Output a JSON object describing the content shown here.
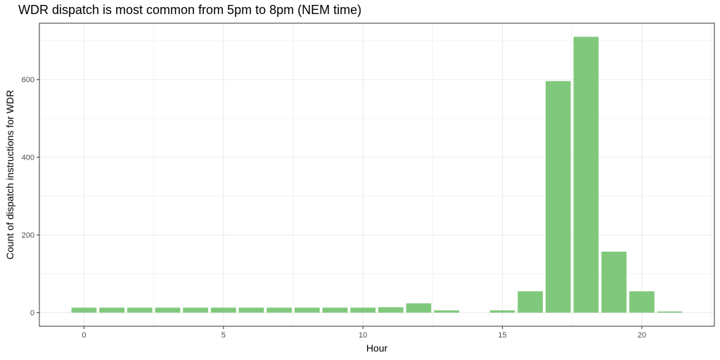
{
  "chart_data": {
    "type": "bar",
    "title": "WDR dispatch is most common from 5pm to 8pm (NEM time)",
    "xlabel": "Hour",
    "ylabel": "Count of dispatch instructions for WDR",
    "x": [
      0,
      1,
      2,
      3,
      4,
      5,
      6,
      7,
      8,
      9,
      10,
      11,
      12,
      13,
      14,
      15,
      16,
      17,
      18,
      19,
      20,
      21
    ],
    "values": [
      13,
      13,
      13,
      13,
      13,
      13,
      13,
      13,
      13,
      13,
      13,
      14,
      24,
      6,
      0,
      6,
      55,
      596,
      710,
      157,
      55,
      3
    ],
    "xlim": [
      -1.6,
      22.6
    ],
    "ylim": [
      -35,
      745
    ],
    "xticks": [
      0,
      5,
      10,
      15,
      20
    ],
    "xtick_labels": [
      "0",
      "5",
      "10",
      "15",
      "20"
    ],
    "yticks": [
      0,
      200,
      400,
      600
    ],
    "ytick_labels": [
      "0",
      "200",
      "400",
      "600"
    ],
    "grid": true,
    "bar_color": "#80c97c",
    "grid_color": "#ebebeb",
    "panel_border_color": "#333333"
  }
}
